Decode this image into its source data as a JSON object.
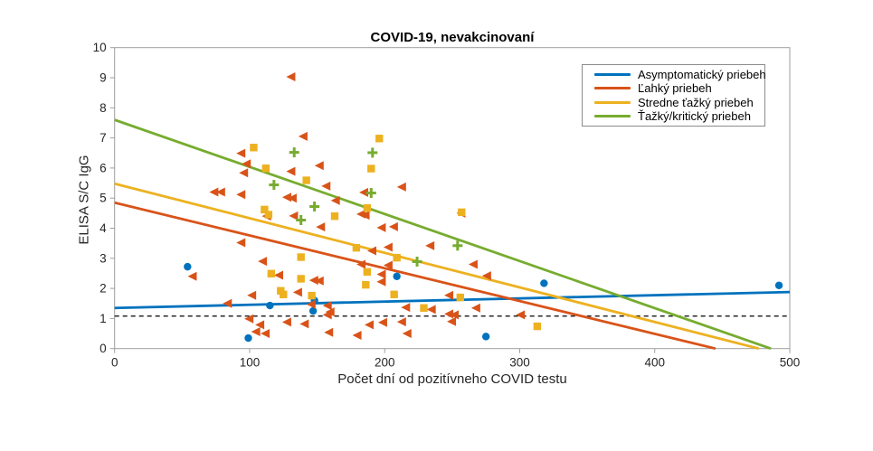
{
  "chart_data": {
    "type": "scatter",
    "title": "COVID-19, nevakcinovaní",
    "xlabel": "Počet dní od pozitívneho COVID testu",
    "ylabel": "ELISA S/C IgG",
    "xlim": [
      0,
      500
    ],
    "ylim": [
      0,
      10
    ],
    "xticks": [
      0,
      100,
      200,
      300,
      400,
      500
    ],
    "yticks": [
      0,
      1,
      2,
      3,
      4,
      5,
      6,
      7,
      8,
      9,
      10
    ],
    "grid": false,
    "legend_position": "northeast",
    "axis_color": "#9e9e9e",
    "tick_label_color": "#262626",
    "cutoff_line": {
      "y": 1.08,
      "color": "#000000",
      "style": "dashed"
    },
    "series": [
      {
        "name": "Asymptomatický priebeh",
        "color": "#0072BD",
        "marker": "circle",
        "trend": {
          "x": [
            0,
            500
          ],
          "y": [
            1.35,
            1.88
          ]
        },
        "points": [
          [
            54,
            2.72
          ],
          [
            99,
            0.35
          ],
          [
            115,
            1.43
          ],
          [
            147,
            1.25
          ],
          [
            148,
            1.6
          ],
          [
            209,
            2.4
          ],
          [
            275,
            0.4
          ],
          [
            318,
            2.17
          ],
          [
            492,
            2.1
          ]
        ]
      },
      {
        "name": "Ľahký priebeh",
        "color": "#D95319",
        "marker": "triangle-left",
        "trend": {
          "x": [
            0,
            445
          ],
          "y": [
            4.85,
            0
          ]
        },
        "points": [
          [
            131,
            9.03
          ],
          [
            140,
            7.05
          ],
          [
            94,
            6.49
          ],
          [
            98,
            6.14
          ],
          [
            131,
            5.89
          ],
          [
            96,
            5.84
          ],
          [
            152,
            6.08
          ],
          [
            157,
            5.4
          ],
          [
            213,
            5.37
          ],
          [
            185,
            5.19
          ],
          [
            74,
            5.2
          ],
          [
            79,
            5.2
          ],
          [
            94,
            5.12
          ],
          [
            128,
            5.03
          ],
          [
            132,
            5.0
          ],
          [
            164,
            4.92
          ],
          [
            113,
            4.4
          ],
          [
            133,
            4.41
          ],
          [
            183,
            4.47
          ],
          [
            186,
            4.43
          ],
          [
            153,
            4.04
          ],
          [
            198,
            4.02
          ],
          [
            207,
            4.05
          ],
          [
            257,
            4.5
          ],
          [
            94,
            3.52
          ],
          [
            191,
            3.25
          ],
          [
            203,
            3.37
          ],
          [
            234,
            3.42
          ],
          [
            110,
            2.9
          ],
          [
            183,
            2.8
          ],
          [
            203,
            2.77
          ],
          [
            266,
            2.8
          ],
          [
            276,
            2.42
          ],
          [
            58,
            2.4
          ],
          [
            122,
            2.44
          ],
          [
            148,
            2.27
          ],
          [
            152,
            2.25
          ],
          [
            198,
            2.47
          ],
          [
            198,
            2.22
          ],
          [
            136,
            1.87
          ],
          [
            102,
            1.77
          ],
          [
            84,
            1.5
          ],
          [
            146,
            1.47
          ],
          [
            158,
            1.43
          ],
          [
            160,
            1.22
          ],
          [
            158,
            1.12
          ],
          [
            216,
            1.37
          ],
          [
            235,
            1.3
          ],
          [
            248,
            1.77
          ],
          [
            268,
            1.35
          ],
          [
            248,
            1.15
          ],
          [
            252,
            1.12
          ],
          [
            301,
            1.12
          ],
          [
            100,
            0.99
          ],
          [
            108,
            0.79
          ],
          [
            128,
            0.88
          ],
          [
            141,
            0.82
          ],
          [
            105,
            0.56
          ],
          [
            112,
            0.5
          ],
          [
            159,
            0.54
          ],
          [
            180,
            0.44
          ],
          [
            189,
            0.79
          ],
          [
            199,
            0.87
          ],
          [
            213,
            0.89
          ],
          [
            217,
            0.5
          ],
          [
            250,
            0.9
          ]
        ]
      },
      {
        "name": "Stredne ťažký priebeh",
        "color": "#EDB120",
        "marker": "square",
        "trend": {
          "x": [
            0,
            477
          ],
          "y": [
            5.48,
            0
          ]
        },
        "points": [
          [
            103,
            6.68
          ],
          [
            196,
            6.98
          ],
          [
            112,
            5.99
          ],
          [
            190,
            5.98
          ],
          [
            142,
            5.59
          ],
          [
            111,
            4.62
          ],
          [
            114,
            4.45
          ],
          [
            163,
            4.4
          ],
          [
            187,
            4.67
          ],
          [
            257,
            4.53
          ],
          [
            179,
            3.35
          ],
          [
            138,
            3.04
          ],
          [
            209,
            3.02
          ],
          [
            116,
            2.49
          ],
          [
            138,
            2.32
          ],
          [
            187,
            2.55
          ],
          [
            186,
            2.12
          ],
          [
            123,
            1.92
          ],
          [
            125,
            1.8
          ],
          [
            146,
            1.76
          ],
          [
            207,
            1.8
          ],
          [
            256,
            1.7
          ],
          [
            229,
            1.35
          ],
          [
            313,
            0.74
          ]
        ]
      },
      {
        "name": "Ťažký/kritický priebeh",
        "color": "#77AC30",
        "marker": "plus",
        "trend": {
          "x": [
            0,
            486
          ],
          "y": [
            7.6,
            0
          ]
        },
        "points": [
          [
            133,
            6.52
          ],
          [
            191,
            6.51
          ],
          [
            118,
            5.44
          ],
          [
            190,
            5.17
          ],
          [
            148,
            4.72
          ],
          [
            138,
            4.27
          ],
          [
            254,
            3.42
          ],
          [
            224,
            2.89
          ]
        ]
      }
    ]
  }
}
